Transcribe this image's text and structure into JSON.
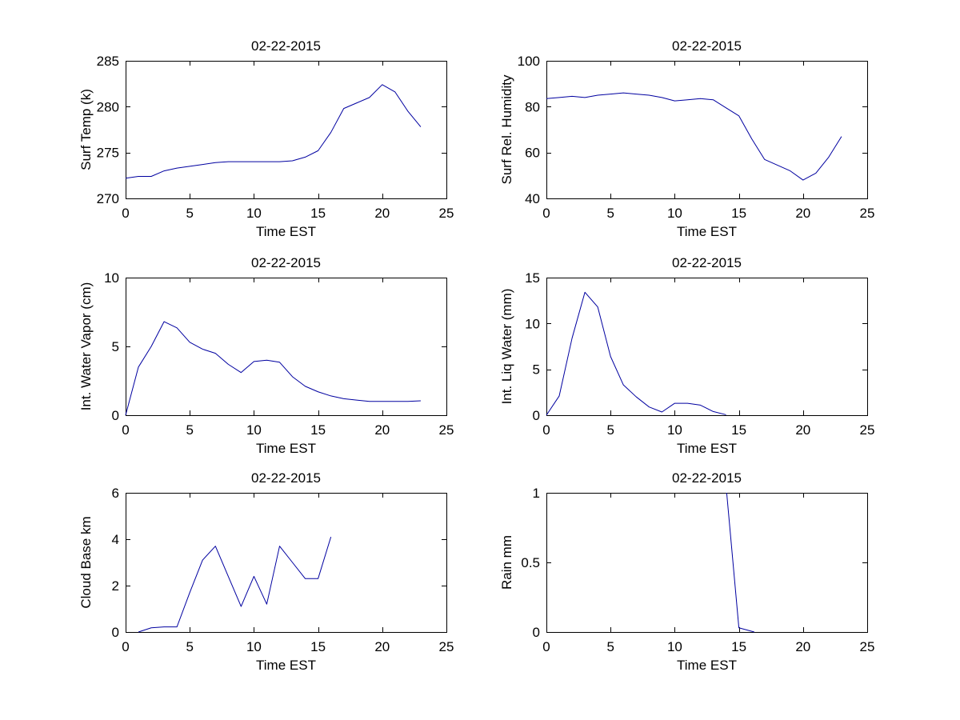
{
  "figure": {
    "background": "#ffffff",
    "axis_color": "#000000",
    "text_color": "#000000",
    "line_color": "#0000A0"
  },
  "chart_data": [
    {
      "id": "surf-temp",
      "type": "line",
      "position": "top-left",
      "title": "02-22-2015",
      "xlabel": "Time EST",
      "ylabel": "Surf Temp (k)",
      "xlim": [
        0,
        25
      ],
      "ylim": [
        270,
        285
      ],
      "xticks": [
        0,
        5,
        10,
        15,
        20,
        25
      ],
      "yticks": [
        270,
        275,
        280,
        285
      ],
      "grid": false,
      "legend": null,
      "x": [
        0,
        1,
        2,
        3,
        4,
        5,
        6,
        7,
        8,
        9,
        10,
        11,
        12,
        13,
        14,
        15,
        16,
        17,
        18,
        19,
        20,
        21,
        22,
        23
      ],
      "y": [
        272.2,
        272.4,
        272.4,
        273.0,
        273.3,
        273.5,
        273.7,
        273.9,
        274.0,
        274.0,
        274.0,
        274.0,
        274.0,
        274.1,
        274.5,
        275.2,
        277.2,
        279.8,
        280.4,
        281.0,
        282.4,
        281.6,
        279.5,
        277.8
      ]
    },
    {
      "id": "surf-rel-humidity",
      "type": "line",
      "position": "top-right",
      "title": "02-22-2015",
      "xlabel": "Time EST",
      "ylabel": "Surf Rel. Humidity",
      "xlim": [
        0,
        25
      ],
      "ylim": [
        40,
        100
      ],
      "xticks": [
        0,
        5,
        10,
        15,
        20,
        25
      ],
      "yticks": [
        40,
        60,
        80,
        100
      ],
      "grid": false,
      "legend": null,
      "x": [
        0,
        1,
        2,
        3,
        4,
        5,
        6,
        7,
        8,
        9,
        10,
        11,
        12,
        13,
        14,
        15,
        16,
        17,
        18,
        19,
        20,
        21,
        22,
        23
      ],
      "y": [
        83.5,
        84,
        84.5,
        84,
        85,
        85.5,
        86,
        85.5,
        85,
        84,
        82.5,
        83,
        83.5,
        83,
        79.5,
        76,
        66,
        57,
        54.5,
        52,
        48,
        51,
        58,
        67
      ]
    },
    {
      "id": "int-water-vapor",
      "type": "line",
      "position": "mid-left",
      "title": "02-22-2015",
      "xlabel": "Time EST",
      "ylabel": "Int. Water Vapor (cm)",
      "xlim": [
        0,
        25
      ],
      "ylim": [
        0,
        10
      ],
      "xticks": [
        0,
        5,
        10,
        15,
        20,
        25
      ],
      "yticks": [
        0,
        5,
        10
      ],
      "grid": false,
      "legend": null,
      "x": [
        0,
        1,
        2,
        3,
        4,
        5,
        6,
        7,
        8,
        9,
        10,
        11,
        12,
        13,
        14,
        15,
        16,
        17,
        18,
        19,
        20,
        21,
        22,
        23
      ],
      "y": [
        0,
        3.5,
        5.0,
        6.8,
        6.35,
        5.3,
        4.8,
        4.5,
        3.7,
        3.1,
        3.9,
        4.0,
        3.85,
        2.8,
        2.1,
        1.7,
        1.4,
        1.2,
        1.1,
        1.0,
        1.0,
        1.0,
        1.0,
        1.05
      ]
    },
    {
      "id": "int-liq-water",
      "type": "line",
      "position": "mid-right",
      "title": "02-22-2015",
      "xlabel": "Time EST",
      "ylabel": "Int. Liq Water (mm)",
      "xlim": [
        0,
        25
      ],
      "ylim": [
        0,
        15
      ],
      "xticks": [
        0,
        5,
        10,
        15,
        20,
        25
      ],
      "yticks": [
        0,
        5,
        10,
        15
      ],
      "grid": false,
      "legend": null,
      "x": [
        0,
        1,
        2,
        3,
        4,
        5,
        6,
        7,
        8,
        9,
        10,
        11,
        12,
        13,
        14
      ],
      "y": [
        0,
        2.1,
        8.4,
        13.4,
        11.8,
        6.4,
        3.3,
        2.0,
        0.9,
        0.35,
        1.3,
        1.3,
        1.1,
        0.4,
        0.05
      ]
    },
    {
      "id": "cloud-base",
      "type": "line",
      "position": "bottom-left",
      "title": "02-22-2015",
      "xlabel": "Time EST",
      "ylabel": "Cloud Base km",
      "xlim": [
        0,
        25
      ],
      "ylim": [
        0,
        6
      ],
      "xticks": [
        0,
        5,
        10,
        15,
        20,
        25
      ],
      "yticks": [
        0,
        2,
        4,
        6
      ],
      "grid": false,
      "legend": null,
      "x": [
        1,
        2,
        3,
        4,
        5,
        6,
        7,
        8,
        9,
        10,
        11,
        12,
        13,
        14,
        15,
        16
      ],
      "y": [
        0,
        0.18,
        0.22,
        0.22,
        1.7,
        3.1,
        3.7,
        2.4,
        1.1,
        2.4,
        1.2,
        3.7,
        3.0,
        2.3,
        2.3,
        4.1
      ]
    },
    {
      "id": "rain",
      "type": "line",
      "position": "bottom-right",
      "title": "02-22-2015",
      "xlabel": "Time EST",
      "ylabel": "Rain mm",
      "xlim": [
        0,
        25
      ],
      "ylim": [
        0,
        1
      ],
      "xticks": [
        0,
        5,
        10,
        15,
        20,
        25
      ],
      "yticks": [
        0,
        0.5,
        1
      ],
      "grid": false,
      "legend": null,
      "x": [
        14.05,
        15,
        16.2
      ],
      "y": [
        1,
        0.03,
        0
      ]
    }
  ]
}
